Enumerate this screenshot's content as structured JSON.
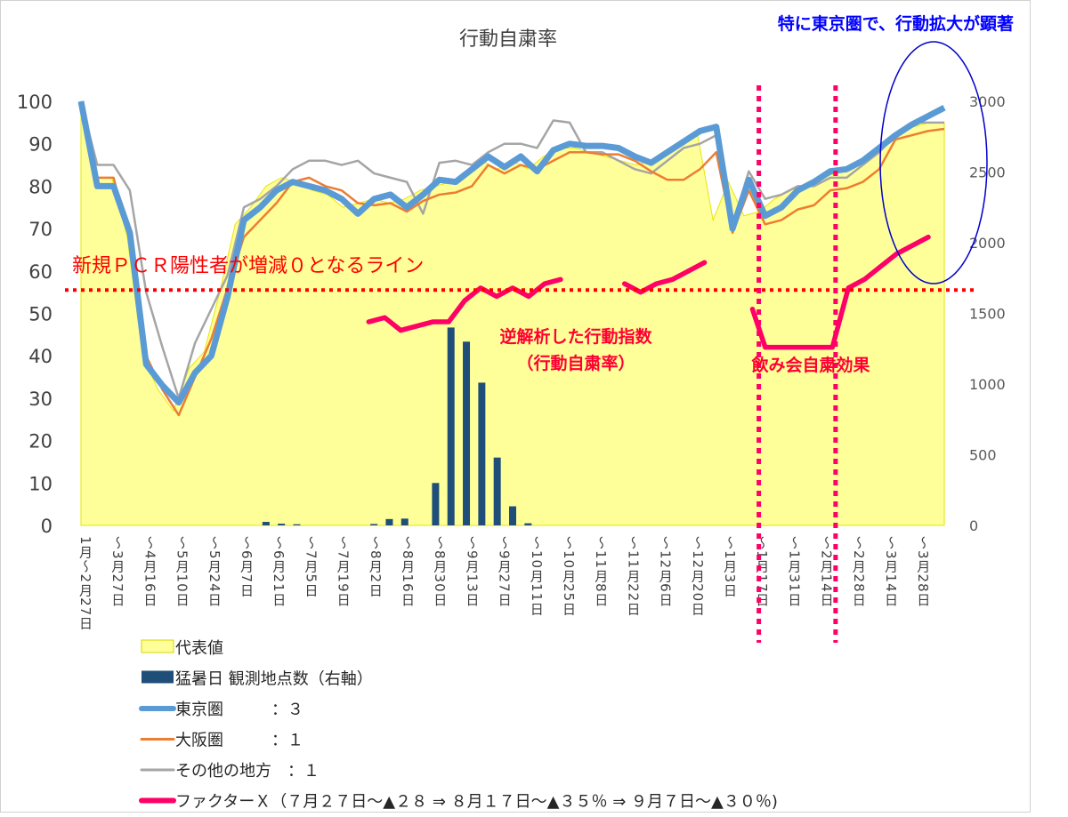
{
  "chart_data": {
    "type": "area",
    "title": "行動自粛率",
    "y_left": {
      "range": [
        0,
        100
      ],
      "ticks": [
        "100",
        "90",
        "80",
        "70",
        "60",
        "50",
        "40",
        "30",
        "20",
        "10",
        "0"
      ]
    },
    "y_right": {
      "range": [
        0,
        3000
      ],
      "ticks": [
        "3000",
        "2500",
        "2000",
        "1500",
        "1000",
        "500",
        "0"
      ]
    },
    "x_labels": [
      "1月～2月27日",
      "～3月27日",
      "～4月16日",
      "～5月10日",
      "～5月24日",
      "～6月7日",
      "～6月21日",
      "～7月5日",
      "～7月19日",
      "～8月2日",
      "～8月16日",
      "～8月30日",
      "～9月13日",
      "～9月27日",
      "～10月11日",
      "～10月25日",
      "～11月8日",
      "～11月22日",
      "～12月6日",
      "～12月20日",
      "～1月3日",
      "～1月17日",
      "～1月31日",
      "～2月14日",
      "～2月28日",
      "～3月14日",
      "～3月28日"
    ],
    "series": [
      {
        "name": "代表値",
        "type": "area",
        "color": "#ffff99",
        "values": [
          100,
          82,
          82,
          68,
          40,
          32,
          27,
          37,
          41,
          55,
          71,
          75,
          80,
          82,
          81,
          79,
          78,
          75,
          76,
          77,
          76,
          77,
          79,
          80,
          81,
          83,
          86,
          84,
          86,
          84,
          87,
          89,
          89,
          88,
          87,
          86,
          85,
          86,
          88,
          90,
          92,
          72,
          81,
          73,
          74,
          77,
          79,
          80,
          82,
          83,
          85,
          87,
          90,
          92,
          94,
          95,
          95
        ]
      },
      {
        "name": "猛暑日 観測地点数（右軸）",
        "type": "bar",
        "axis": "right",
        "color": "#1f4e79",
        "values": [
          0,
          0,
          0,
          0,
          0,
          0,
          0,
          0,
          0,
          0,
          0,
          0,
          25,
          12,
          8,
          0,
          0,
          0,
          0,
          10,
          45,
          48,
          0,
          300,
          1400,
          1300,
          1010,
          480,
          135,
          15,
          0,
          0,
          0,
          0,
          0,
          0,
          0,
          0,
          0,
          0,
          0,
          0,
          0,
          0,
          0,
          0,
          0,
          0,
          0,
          0,
          0,
          0,
          0,
          0,
          0,
          0,
          0
        ]
      },
      {
        "name": "東京圏　　　：３",
        "type": "line",
        "color": "#5b9bd5",
        "values": [
          100,
          80,
          80,
          69,
          38,
          33,
          29,
          36,
          40,
          54,
          72,
          75,
          79,
          81,
          80,
          79,
          77,
          73.5,
          77,
          78,
          75,
          78,
          81.5,
          81,
          84,
          87,
          84.5,
          87,
          83.5,
          88.5,
          90,
          89.5,
          89.5,
          89,
          87,
          85.5,
          88,
          90.5,
          93,
          94,
          70,
          81.5,
          73,
          75,
          79,
          81,
          83.5,
          84,
          86,
          89,
          92,
          94.5,
          96.5,
          98.5
        ]
      },
      {
        "name": "大阪圏　　　：１",
        "type": "line",
        "color": "#ed7d31",
        "values": [
          100,
          82,
          82,
          67,
          40,
          32,
          26,
          35,
          44,
          56,
          68,
          72,
          76,
          81,
          82,
          80,
          79,
          76,
          75.5,
          76,
          74,
          76.5,
          78,
          78.5,
          80,
          85,
          83,
          85,
          84,
          86,
          88,
          88,
          87.5,
          87.5,
          86,
          83.5,
          81.5,
          81.5,
          84,
          88,
          69,
          79,
          71,
          72,
          74.5,
          75.5,
          79,
          79.5,
          81,
          84,
          91,
          92,
          93,
          93.5
        ]
      },
      {
        "name": "その他の地方　：１",
        "type": "line",
        "color": "#a5a5a5",
        "values": [
          100,
          85,
          85,
          79,
          55,
          42,
          30,
          43,
          51,
          59,
          75,
          77,
          80,
          84,
          86,
          86,
          85,
          86,
          83,
          82,
          81,
          73.5,
          85.5,
          86,
          85,
          88,
          90,
          90,
          89,
          95.5,
          95,
          88,
          88,
          86,
          84,
          83,
          86,
          89,
          90,
          92,
          71,
          83.5,
          77,
          78,
          80,
          80,
          82,
          82,
          85,
          88,
          92,
          95,
          95,
          95
        ]
      },
      {
        "name": "ファクターＸ（７月２７日～▲２８ ⇒ ８月１７日～▲３５％ ⇒ ９月７日～▲３０％)",
        "type": "line",
        "color": "#ff0066",
        "segments": [
          [
            [
              9,
              48
            ],
            [
              9.5,
              49
            ],
            [
              10,
              46
            ],
            [
              11,
              48
            ],
            [
              11.5,
              48
            ],
            [
              12,
              53
            ],
            [
              12.5,
              56
            ],
            [
              13,
              54
            ],
            [
              13.5,
              56
            ],
            [
              14,
              54
            ],
            [
              14.5,
              57
            ],
            [
              15,
              58
            ]
          ],
          [
            [
              17,
              57
            ],
            [
              17.5,
              55
            ],
            [
              18,
              57
            ],
            [
              18.5,
              58
            ],
            [
              19,
              60
            ],
            [
              19.5,
              62
            ]
          ],
          [
            [
              21,
              51
            ],
            [
              21.4,
              42
            ],
            [
              22,
              42
            ],
            [
              23,
              42
            ],
            [
              23.5,
              42
            ],
            [
              24,
              56
            ],
            [
              24.5,
              58
            ],
            [
              25,
              61
            ],
            [
              25.5,
              64
            ],
            [
              26,
              66
            ],
            [
              26.5,
              68
            ]
          ]
        ]
      }
    ],
    "annotations": {
      "pcr_line": {
        "label": "新規ＰＣＲ陽性者が増減０となるライン",
        "y": 55.5,
        "color": "#ff0000"
      },
      "factor_label": "逆解析した行動指数\n（行動自粛率）",
      "party_label": "飲み会自粛効果",
      "tokyo_label": "特に東京圏で、行動拡大が顕著",
      "vertical_markers_x_index": [
        21.2,
        23.6
      ]
    }
  },
  "legend": [
    {
      "label": "代表値",
      "kind": "area",
      "color": "#ffff99"
    },
    {
      "label": "猛暑日 観測地点数（右軸）",
      "kind": "bar",
      "color": "#1f4e79"
    },
    {
      "label": "東京圏　　　：３",
      "kind": "line-thick",
      "color": "#5b9bd5"
    },
    {
      "label": "大阪圏　　　：１",
      "kind": "line",
      "color": "#ed7d31"
    },
    {
      "label": "その他の地方　：１",
      "kind": "line",
      "color": "#a5a5a5"
    },
    {
      "label": "ファクターＸ（７月２７日～▲２８ ⇒ ８月１７日～▲３５％ ⇒ ９月７日～▲３０％)",
      "kind": "line-thick",
      "color": "#ff0066"
    }
  ]
}
